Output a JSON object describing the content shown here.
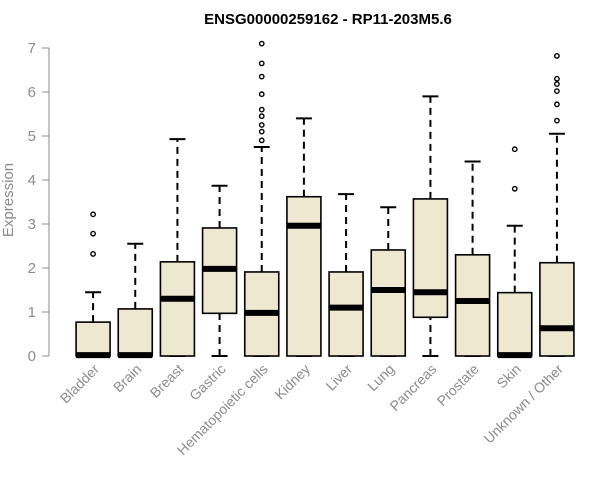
{
  "colors": {
    "box_fill": "#efe8d0",
    "box_stroke": "#000000",
    "axis": "#8c8c8c",
    "text": "#8c8c8c",
    "title": "#000000"
  },
  "chart_data": {
    "type": "box",
    "title": "ENSG00000259162 - RP11-203M5.6",
    "xlabel": "",
    "ylabel": "Expression",
    "ylim": [
      0,
      7
    ],
    "yticks": [
      0,
      1,
      2,
      3,
      4,
      5,
      6,
      7
    ],
    "grid": false,
    "categories": [
      "Bladder",
      "Brain",
      "Breast",
      "Gastric",
      "Hematopoietic cells",
      "Kidney",
      "Liver",
      "Lung",
      "Pancreas",
      "Prostate",
      "Skin",
      "Unknown / Other"
    ],
    "boxes": [
      {
        "category": "Bladder",
        "whisker_low": 0,
        "q1": 0,
        "median": 0.02,
        "q3": 0.77,
        "whisker_high": 1.45,
        "outliers": [
          3.22,
          2.78,
          2.32
        ]
      },
      {
        "category": "Brain",
        "whisker_low": 0,
        "q1": 0,
        "median": 0.02,
        "q3": 1.07,
        "whisker_high": 2.55,
        "outliers": []
      },
      {
        "category": "Breast",
        "whisker_low": 0,
        "q1": 0,
        "median": 1.3,
        "q3": 2.14,
        "whisker_high": 4.93,
        "outliers": []
      },
      {
        "category": "Gastric",
        "whisker_low": 0,
        "q1": 0.97,
        "median": 1.98,
        "q3": 2.91,
        "whisker_high": 3.87,
        "outliers": []
      },
      {
        "category": "Hematopoietic cells",
        "whisker_low": 0,
        "q1": 0,
        "median": 0.98,
        "q3": 1.91,
        "whisker_high": 4.75,
        "outliers": [
          7.1,
          6.65,
          6.35,
          5.95,
          5.6,
          5.45,
          5.25,
          5.1,
          4.9
        ]
      },
      {
        "category": "Kidney",
        "whisker_low": 0,
        "q1": 0,
        "median": 2.96,
        "q3": 3.62,
        "whisker_high": 5.4,
        "outliers": []
      },
      {
        "category": "Liver",
        "whisker_low": 0,
        "q1": 0,
        "median": 1.1,
        "q3": 1.91,
        "whisker_high": 3.68,
        "outliers": []
      },
      {
        "category": "Lung",
        "whisker_low": 0,
        "q1": 0,
        "median": 1.5,
        "q3": 2.41,
        "whisker_high": 3.38,
        "outliers": []
      },
      {
        "category": "Pancreas",
        "whisker_low": 0,
        "q1": 0.88,
        "median": 1.45,
        "q3": 3.57,
        "whisker_high": 5.9,
        "outliers": []
      },
      {
        "category": "Prostate",
        "whisker_low": 0,
        "q1": 0,
        "median": 1.25,
        "q3": 2.3,
        "whisker_high": 4.42,
        "outliers": []
      },
      {
        "category": "Skin",
        "whisker_low": 0,
        "q1": 0,
        "median": 0.02,
        "q3": 1.44,
        "whisker_high": 2.96,
        "outliers": [
          4.7,
          3.8
        ]
      },
      {
        "category": "Unknown / Other",
        "whisker_low": 0,
        "q1": 0,
        "median": 0.63,
        "q3": 2.12,
        "whisker_high": 5.05,
        "outliers": [
          6.82,
          6.3,
          6.18,
          6.02,
          5.72,
          5.35
        ]
      }
    ]
  }
}
